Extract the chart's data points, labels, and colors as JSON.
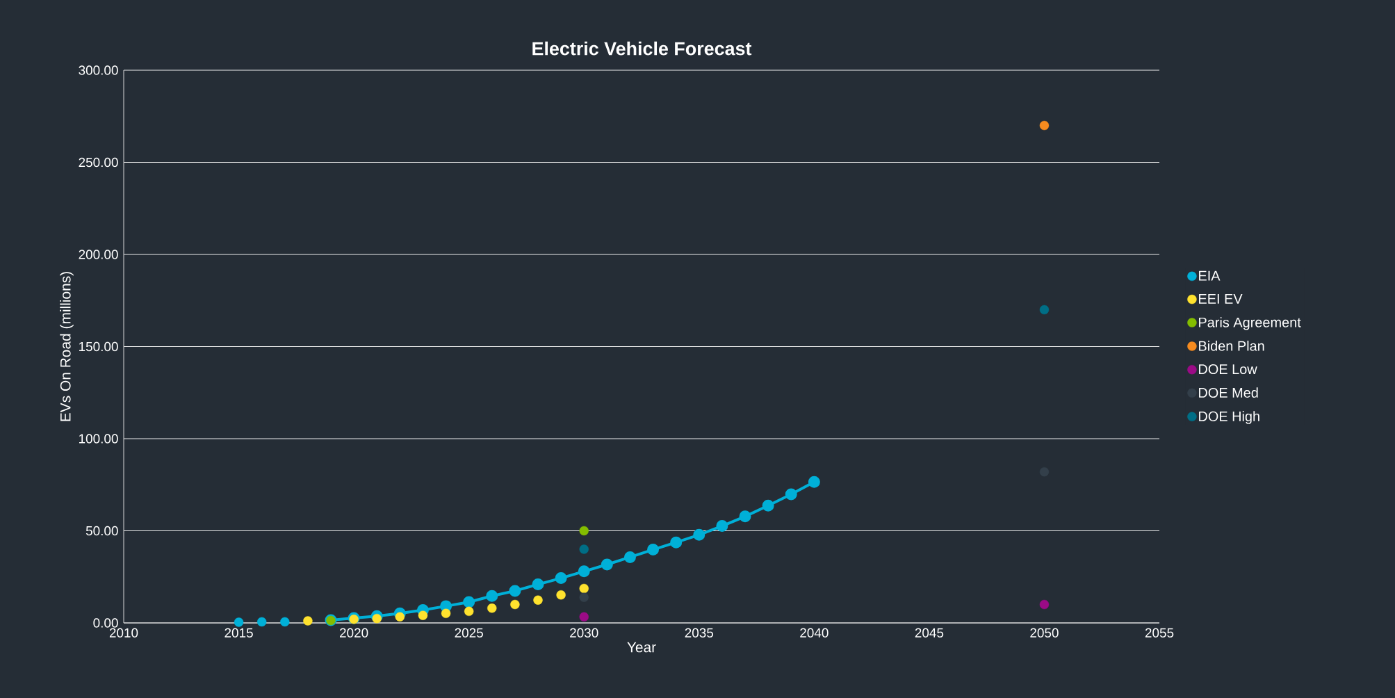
{
  "chart_data": {
    "type": "scatter",
    "title": "Electric Vehicle Forecast",
    "xlabel": "Year",
    "ylabel": "EVs On Road (millions)",
    "xlim": [
      2010,
      2055
    ],
    "xticks": [
      2010,
      2015,
      2020,
      2025,
      2030,
      2035,
      2040,
      2045,
      2050,
      2055
    ],
    "ylim": [
      0,
      300
    ],
    "yticks": [
      {
        "value": 0,
        "label": "0.00"
      },
      {
        "value": 50,
        "label": "50.00"
      },
      {
        "value": 100,
        "label": "100.00"
      },
      {
        "value": 150,
        "label": "150.00"
      },
      {
        "value": 200,
        "label": "200.00"
      },
      {
        "value": 250,
        "label": "250.00"
      },
      {
        "value": 300,
        "label": "300.00"
      }
    ],
    "grid": "y",
    "legend": "right",
    "marker": "circle",
    "series": [
      {
        "type": "line",
        "line_style": "solid",
        "color": "#00b0d8",
        "x": [
          2019,
          2020,
          2021,
          2022,
          2023,
          2024,
          2025,
          2026,
          2027,
          2028,
          2029,
          2030,
          2031,
          2032,
          2033,
          2034,
          2035,
          2036,
          2037,
          2038,
          2039,
          2040
        ],
        "values": [
          1.5,
          2.6,
          3.7,
          5.2,
          7,
          9.1,
          11.3,
          14.6,
          17.4,
          20.9,
          24.3,
          28,
          31.7,
          35.7,
          39.8,
          43.7,
          47.8,
          52.6,
          57.8,
          63.7,
          69.8,
          76.5
        ]
      },
      {
        "name": "EIA",
        "color": "#00b0d8",
        "x": [
          2015,
          2016,
          2017
        ],
        "values": [
          0.4,
          0.6,
          0.6
        ]
      },
      {
        "name": "EEI EV",
        "color": "#ffe22e",
        "x": [
          2018,
          2020,
          2021,
          2022,
          2023,
          2024,
          2025,
          2026,
          2027,
          2028,
          2029,
          2030
        ],
        "values": [
          1.1,
          2.0,
          2.4,
          3.3,
          4.1,
          5.2,
          6.3,
          8.0,
          10,
          12.4,
          15.2,
          18.7
        ]
      },
      {
        "name": "Paris Agreement",
        "color": "#84bd00",
        "x": [
          2019,
          2030
        ],
        "values": [
          1.3,
          50
        ]
      },
      {
        "name": "Biden Plan",
        "color": "#f68b1f",
        "x": [
          2050
        ],
        "values": [
          270
        ]
      },
      {
        "name": "DOE Low",
        "color": "#9b0b86",
        "x": [
          2030,
          2050
        ],
        "values": [
          3.3,
          10
        ]
      },
      {
        "name": "DOE Med",
        "color": "#333f4a",
        "x": [
          2030,
          2050
        ],
        "values": [
          13.9,
          82
        ]
      },
      {
        "name": "DOE High",
        "color": "#006e86",
        "x": [
          2030,
          2050
        ],
        "values": [
          40,
          170
        ]
      }
    ]
  }
}
